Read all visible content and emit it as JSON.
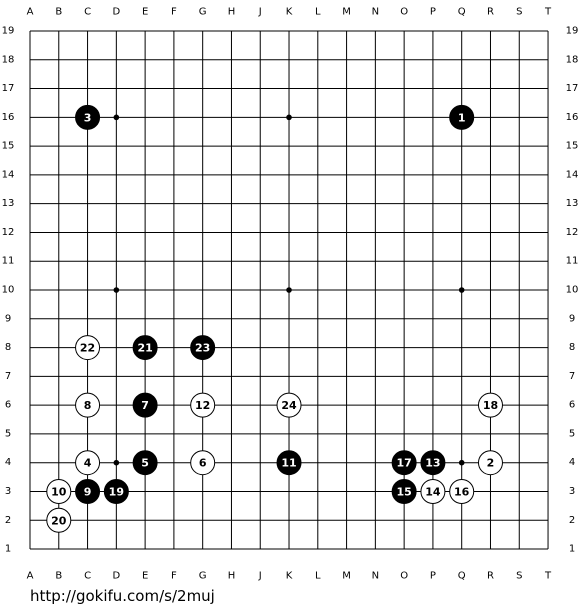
{
  "board": {
    "columns": [
      "A",
      "B",
      "C",
      "D",
      "E",
      "F",
      "G",
      "H",
      "J",
      "K",
      "L",
      "M",
      "N",
      "O",
      "P",
      "Q",
      "R",
      "S",
      "T"
    ],
    "rows": [
      "19",
      "18",
      "17",
      "16",
      "15",
      "14",
      "13",
      "12",
      "11",
      "10",
      "9",
      "8",
      "7",
      "6",
      "5",
      "4",
      "3",
      "2",
      "1"
    ],
    "stones": [
      {
        "label": "1",
        "color": "black",
        "col": "Q",
        "row": "16"
      },
      {
        "label": "2",
        "color": "white",
        "col": "R",
        "row": "4"
      },
      {
        "label": "3",
        "color": "black",
        "col": "C",
        "row": "16"
      },
      {
        "label": "4",
        "color": "white",
        "col": "C",
        "row": "4"
      },
      {
        "label": "5",
        "color": "black",
        "col": "E",
        "row": "4"
      },
      {
        "label": "6",
        "color": "white",
        "col": "G",
        "row": "4"
      },
      {
        "label": "7",
        "color": "black",
        "col": "E",
        "row": "6"
      },
      {
        "label": "8",
        "color": "white",
        "col": "C",
        "row": "6"
      },
      {
        "label": "9",
        "color": "black",
        "col": "C",
        "row": "3"
      },
      {
        "label": "10",
        "color": "white",
        "col": "B",
        "row": "3"
      },
      {
        "label": "11",
        "color": "black",
        "col": "K",
        "row": "4"
      },
      {
        "label": "12",
        "color": "white",
        "col": "G",
        "row": "6"
      },
      {
        "label": "13",
        "color": "black",
        "col": "P",
        "row": "4"
      },
      {
        "label": "14",
        "color": "white",
        "col": "P",
        "row": "3"
      },
      {
        "label": "15",
        "color": "black",
        "col": "O",
        "row": "3"
      },
      {
        "label": "16",
        "color": "white",
        "col": "Q",
        "row": "3"
      },
      {
        "label": "17",
        "color": "black",
        "col": "O",
        "row": "4"
      },
      {
        "label": "18",
        "color": "white",
        "col": "R",
        "row": "6"
      },
      {
        "label": "19",
        "color": "black",
        "col": "D",
        "row": "3"
      },
      {
        "label": "20",
        "color": "white",
        "col": "B",
        "row": "2"
      },
      {
        "label": "21",
        "color": "black",
        "col": "E",
        "row": "8"
      },
      {
        "label": "22",
        "color": "white",
        "col": "C",
        "row": "8"
      },
      {
        "label": "23",
        "color": "black",
        "col": "G",
        "row": "8"
      },
      {
        "label": "24",
        "color": "white",
        "col": "K",
        "row": "6"
      }
    ]
  },
  "footer": {
    "url": "http://gokifu.com/s/2muj"
  }
}
